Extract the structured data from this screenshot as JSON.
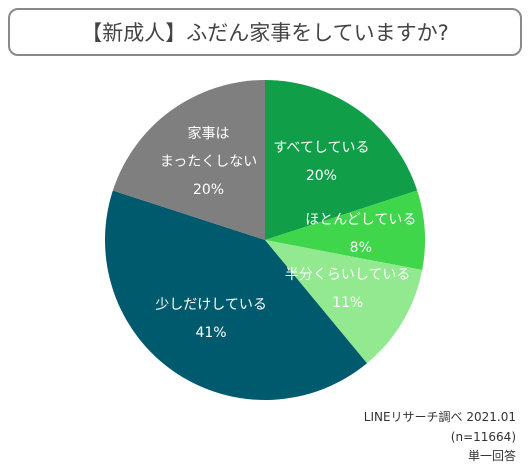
{
  "chart_data": {
    "type": "pie",
    "title": "【新成人】ふだん家事をしていますか?",
    "categories": [
      "すべてしている",
      "ほとんどしている",
      "半分くらいしている",
      "少しだけしている",
      "家事は\nまったくしない"
    ],
    "values": [
      20,
      8,
      11,
      41,
      20
    ],
    "value_labels": [
      "20%",
      "8%",
      "11%",
      "41%",
      "20%"
    ],
    "colors": [
      "#109f48",
      "#3fd64c",
      "#93e98f",
      "#005a6e",
      "#7f7f7f"
    ],
    "notes": [
      "LINEリサーチ調べ 2021.01",
      "(n=11664)",
      "単一回答"
    ]
  }
}
